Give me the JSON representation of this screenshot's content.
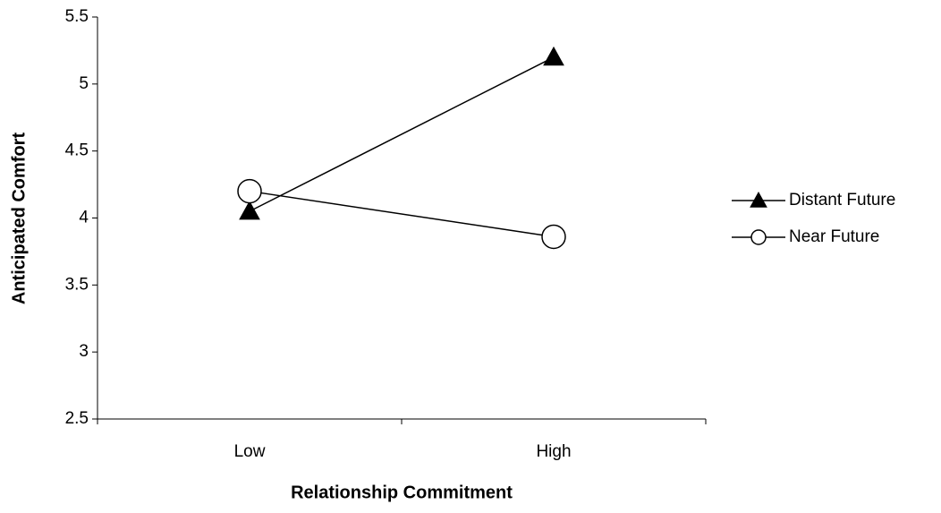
{
  "chart_data": {
    "type": "line",
    "xlabel": "Relationship Commitment",
    "ylabel": "Anticipated Comfort",
    "categories": [
      "Low",
      "High"
    ],
    "series": [
      {
        "name": "Distant Future",
        "color": "#000000",
        "marker": "triangle",
        "values": [
          4.05,
          5.2
        ]
      },
      {
        "name": "Near Future",
        "color": "#000000",
        "marker": "circle",
        "values": [
          4.2,
          3.86
        ]
      }
    ],
    "ylim": [
      2.5,
      5.5
    ],
    "yticks": [
      2.5,
      3,
      3.5,
      4,
      4.5,
      5,
      5.5
    ],
    "grid": false,
    "legend": "right"
  }
}
